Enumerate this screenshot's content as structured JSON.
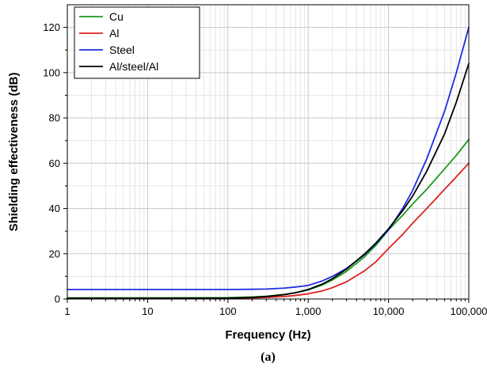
{
  "chart_data": {
    "type": "line",
    "xlabel": "Frequency (Hz)",
    "ylabel": "Shielding effectiveness (dB)",
    "caption": "(a)",
    "x_scale": "log",
    "xlim": [
      1,
      100000
    ],
    "ylim": [
      0,
      130
    ],
    "x_ticks": [
      1,
      10,
      100,
      1000,
      10000,
      100000
    ],
    "x_tick_labels": [
      "1",
      "10",
      "100",
      "1,000",
      "10,000",
      "100,000"
    ],
    "y_ticks": [
      0,
      20,
      40,
      60,
      80,
      100,
      120
    ],
    "y_tick_labels": [
      "0",
      "20",
      "40",
      "60",
      "80",
      "100",
      "120"
    ],
    "grid": true,
    "legend_position": "top-left",
    "series": [
      {
        "name": "Cu",
        "color": "#1a9a1a",
        "x": [
          1,
          10,
          100,
          200,
          300,
          500,
          700,
          1000,
          1500,
          2000,
          3000,
          5000,
          7000,
          10000,
          15000,
          20000,
          30000,
          50000,
          70000,
          100000
        ],
        "y": [
          0.5,
          0.5,
          0.6,
          0.9,
          1.2,
          2.0,
          2.8,
          4.0,
          6.2,
          8.4,
          12.2,
          18.6,
          23.8,
          30.5,
          37.0,
          42.0,
          48.5,
          57.5,
          63.5,
          70.5
        ]
      },
      {
        "name": "Al",
        "color": "#e02020",
        "x": [
          1,
          10,
          100,
          200,
          300,
          500,
          700,
          1000,
          1500,
          2000,
          3000,
          5000,
          7000,
          10000,
          15000,
          20000,
          30000,
          50000,
          70000,
          100000
        ],
        "y": [
          0.3,
          0.3,
          0.4,
          0.5,
          0.7,
          1.1,
          1.6,
          2.3,
          3.6,
          5.0,
          7.6,
          12.4,
          16.5,
          22.3,
          28.5,
          33.5,
          40.0,
          48.5,
          54.0,
          60.0
        ]
      },
      {
        "name": "Steel",
        "color": "#1f2ee0",
        "x": [
          1,
          10,
          100,
          200,
          300,
          500,
          700,
          1000,
          1500,
          2000,
          3000,
          5000,
          7000,
          10000,
          15000,
          20000,
          30000,
          50000,
          70000,
          100000
        ],
        "y": [
          4.2,
          4.2,
          4.2,
          4.3,
          4.4,
          4.8,
          5.3,
          6.0,
          8.0,
          10.0,
          13.5,
          19.5,
          24.5,
          30.5,
          40.0,
          48.0,
          62.0,
          83.0,
          100.0,
          120.0
        ]
      },
      {
        "name": "Al/steel/Al",
        "color": "#000000",
        "x": [
          1,
          10,
          100,
          200,
          300,
          500,
          700,
          1000,
          1500,
          2000,
          3000,
          5000,
          7000,
          10000,
          15000,
          20000,
          30000,
          50000,
          70000,
          100000
        ],
        "y": [
          0.3,
          0.3,
          0.4,
          0.7,
          1.1,
          1.9,
          2.8,
          4.2,
          6.6,
          9.0,
          13.2,
          19.8,
          24.8,
          31.0,
          39.0,
          45.5,
          56.5,
          73.0,
          87.0,
          104.0
        ]
      }
    ]
  }
}
